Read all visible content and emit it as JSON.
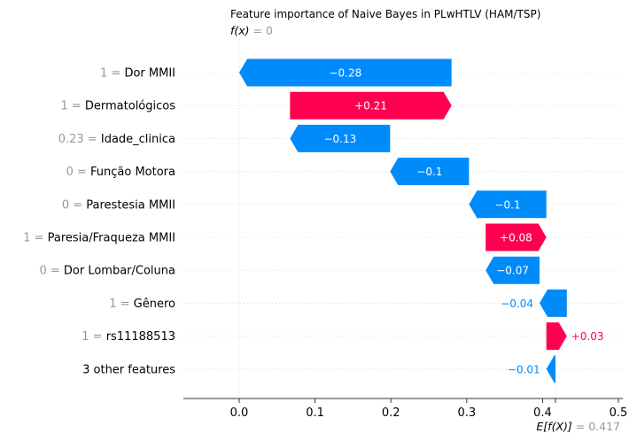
{
  "chart_data": {
    "type": "waterfall",
    "title": "Feature importance of Naive Bayes in PLwHTLV (HAM/TSP)",
    "fx_label": "f(x)",
    "fx_value": "0",
    "ex_label": "E[f(X)]",
    "ex_value": "0.417",
    "xlim": [
      -0.07,
      0.5
    ],
    "xticks": [
      0.0,
      0.1,
      0.2,
      0.3,
      0.4,
      0.5
    ],
    "xtick_labels": [
      "0.0",
      "0.1",
      "0.2",
      "0.3",
      "0.4",
      "0.5"
    ],
    "base_value": 0.417,
    "output_value": 0.0,
    "features": [
      {
        "value": "1",
        "name": "Dor MMII",
        "contribution": -0.28,
        "label": "−0.28",
        "start": 0.28,
        "end": 0.0
      },
      {
        "value": "1",
        "name": "Dermatológicos",
        "contribution": 0.21,
        "label": "+0.21",
        "start": 0.067,
        "end": 0.28
      },
      {
        "value": "0.23",
        "name": "Idade_clinica",
        "contribution": -0.13,
        "label": "−0.13",
        "start": 0.199,
        "end": 0.067
      },
      {
        "value": "0",
        "name": "Função Motora",
        "contribution": -0.1,
        "label": "−0.1",
        "start": 0.303,
        "end": 0.199
      },
      {
        "value": "0",
        "name": "Parestesia MMII",
        "contribution": -0.1,
        "label": "−0.1",
        "start": 0.405,
        "end": 0.303
      },
      {
        "value": "1",
        "name": "Paresia/Fraqueza MMII",
        "contribution": 0.08,
        "label": "+0.08",
        "start": 0.325,
        "end": 0.405
      },
      {
        "value": "0",
        "name": "Dor Lombar/Coluna",
        "contribution": -0.07,
        "label": "−0.07",
        "start": 0.396,
        "end": 0.325
      },
      {
        "value": "1",
        "name": "Gênero",
        "contribution": -0.04,
        "label": "−0.04",
        "start": 0.432,
        "end": 0.396
      },
      {
        "value": "1",
        "name": "rs11188513",
        "contribution": 0.03,
        "label": "+0.03",
        "start": 0.405,
        "end": 0.432
      },
      {
        "value": "",
        "name": "3 other features",
        "contribution": -0.01,
        "label": "−0.01",
        "start": 0.417,
        "end": 0.405
      }
    ],
    "colors": {
      "positive": "#ff0051",
      "negative": "#008bfb",
      "axis": "#333333",
      "muted": "#999999",
      "grid": "#cccccc"
    }
  }
}
